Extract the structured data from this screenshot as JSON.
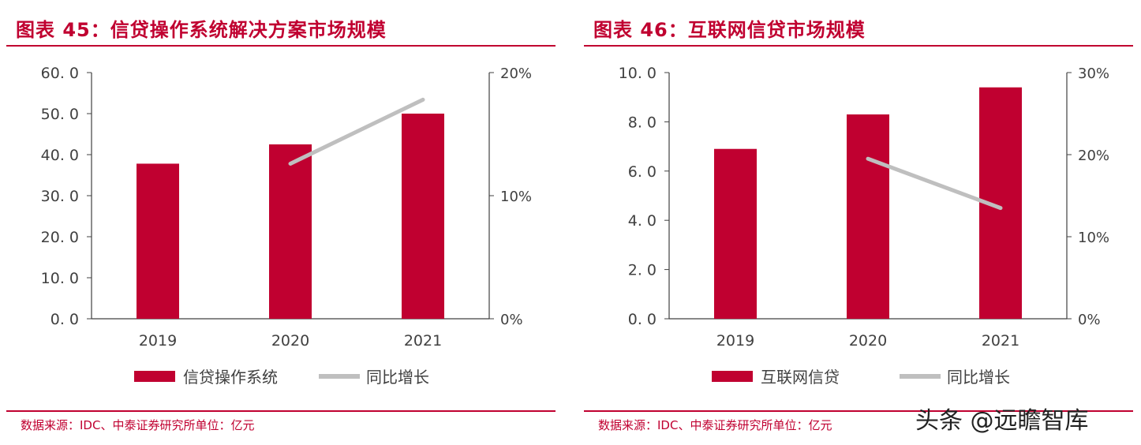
{
  "colors": {
    "accent": "#c00030",
    "bar": "#c00030",
    "line": "#bfbfbf",
    "text": "#404040"
  },
  "panels": [
    {
      "title": "图表 45：信贷操作系统解决方案市场规模",
      "source": "数据来源：IDC、中泰证券研究所单位：亿元"
    },
    {
      "title": "图表 46：互联网信贷市场规模",
      "source": "数据来源：IDC、中泰证券研究所单位：亿元"
    }
  ],
  "chart_data": [
    {
      "type": "bar",
      "categories": [
        "2019",
        "2020",
        "2021"
      ],
      "series": [
        {
          "name": "信贷操作系统",
          "type": "bar",
          "axis": "left",
          "values": [
            37.8,
            42.5,
            50.0
          ]
        },
        {
          "name": "同比增长",
          "type": "line",
          "axis": "right",
          "values": [
            null,
            0.126,
            0.178
          ]
        }
      ],
      "ylim": [
        0,
        60
      ],
      "y_ticks": [
        "60. 0",
        "50. 0",
        "40. 0",
        "30. 0",
        "20. 0",
        "10. 0",
        "0. 0"
      ],
      "y2lim": [
        0,
        0.2
      ],
      "y2_ticks": [
        "20%",
        "10%",
        "0%"
      ],
      "legend_position": "bottom",
      "grid": false
    },
    {
      "type": "bar",
      "categories": [
        "2019",
        "2020",
        "2021"
      ],
      "series": [
        {
          "name": "互联网信贷",
          "type": "bar",
          "axis": "left",
          "values": [
            6.9,
            8.3,
            9.4
          ]
        },
        {
          "name": "同比增长",
          "type": "line",
          "axis": "right",
          "values": [
            null,
            0.195,
            0.135
          ]
        }
      ],
      "ylim": [
        0,
        10
      ],
      "y_ticks": [
        "10. 0",
        "8. 0",
        "6. 0",
        "4. 0",
        "2. 0",
        "0. 0"
      ],
      "y2lim": [
        0,
        0.3
      ],
      "y2_ticks": [
        "30%",
        "20%",
        "10%",
        "0%"
      ],
      "legend_position": "bottom",
      "grid": false
    }
  ],
  "watermark": "头条 @远瞻智库"
}
